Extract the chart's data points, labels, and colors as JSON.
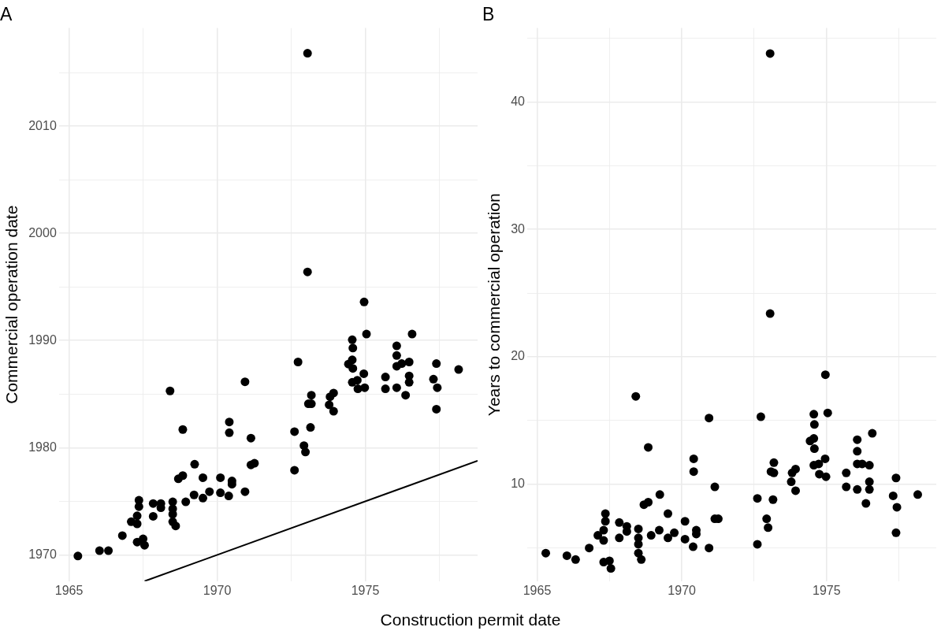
{
  "chart_data": [
    {
      "type": "scatter",
      "title": "A",
      "xlabel": "Construction permit date",
      "ylabel": "Commercial operation date",
      "xlim": [
        1964.66,
        1978.79
      ],
      "xticks": [
        1965,
        {
          "value": 1967.5,
          "label": null
        },
        1970,
        {
          "value": 1972.5,
          "label": null
        },
        1975,
        {
          "value": 1977.5,
          "label": null
        }
      ],
      "ylim": [
        1967.55,
        2019.15
      ],
      "yticks": [
        1970,
        {
          "value": 1975,
          "label": null
        },
        1980,
        {
          "value": 1985,
          "label": null
        },
        1990,
        {
          "value": 1995,
          "label": null
        },
        2000,
        {
          "value": 2005,
          "label": null
        },
        2010,
        {
          "value": 2015,
          "label": null
        }
      ],
      "grid": true,
      "marker": "circle",
      "series": [
        {
          "color": "#000000",
          "x": [
            1965.3,
            1966.03,
            1966.33,
            1966.8,
            1967.3,
            1967.5,
            1967.55,
            1967.1,
            1967.3,
            1967.3,
            1967.36,
            1967.36,
            1967.84,
            1967.84,
            1968.1,
            1968.1,
            1968.5,
            1968.5,
            1968.5,
            1968.5,
            1968.6,
            1968.94,
            1969.22,
            1969.52,
            1969.24,
            1969.52,
            1969.74,
            1970.11,
            1970.11,
            1970.39,
            1970.5,
            1970.5,
            1970.94,
            1970.41,
            1970.41,
            1970.94,
            1971.14,
            1971.14,
            1971.26,
            1968.41,
            1968.84,
            1968.69,
            1968.84,
            1973.05,
            1973.05,
            1972.61,
            1972.61,
            1972.73,
            1972.93,
            1972.98,
            1973.15,
            1974.96,
            1973.18,
            1973.18,
            1973.08,
            1973.81,
            1973.93,
            1973.78,
            1973.93,
            1974.56,
            1974.58,
            1974.56,
            1974.43,
            1974.58,
            1974.56,
            1974.73,
            1974.75,
            1974.95,
            1974.98,
            1975.04,
            1975.68,
            1975.68,
            1976.06,
            1976.06,
            1976.06,
            1976.23,
            1976.48,
            1976.06,
            1976.48,
            1976.48,
            1976.36,
            1976.58,
            1977.4,
            1977.3,
            1977.43,
            1977.4,
            1978.15
          ],
          "values": [
            1969.9,
            1970.4,
            1970.4,
            1971.8,
            1971.2,
            1971.5,
            1970.9,
            1973.1,
            1972.9,
            1973.65,
            1974.5,
            1975.1,
            1973.6,
            1974.8,
            1974.8,
            1974.4,
            1974.95,
            1974.3,
            1973.8,
            1973.1,
            1972.7,
            1974.95,
            1975.6,
            1975.3,
            1978.46,
            1977.2,
            1975.9,
            1977.2,
            1975.8,
            1975.5,
            1976.9,
            1976.6,
            1975.9,
            1982.4,
            1981.4,
            1986.15,
            1980.9,
            1978.4,
            1978.55,
            1985.3,
            1981.7,
            1977.1,
            1977.4,
            2016.8,
            1996.4,
            1977.9,
            1981.5,
            1988,
            1980.2,
            1979.6,
            1981.9,
            1993.6,
            1984.9,
            1984.1,
            1984.1,
            1984.75,
            1985.1,
            1984,
            1983.4,
            1990.07,
            1989.3,
            1988.2,
            1987.8,
            1987.4,
            1986.1,
            1986.3,
            1985.5,
            1986.9,
            1985.6,
            1990.6,
            1986.6,
            1985.5,
            1989.5,
            1988.6,
            1987.6,
            1987.85,
            1988,
            1985.6,
            1986.7,
            1986.1,
            1984.9,
            1990.6,
            1987.85,
            1986.4,
            1985.6,
            1983.6,
            1987.3
          ]
        },
        {
          "type": "line",
          "color": "#000000",
          "marker": "none",
          "x": [
            1967.55,
            1978.79
          ],
          "values": [
            1967.55,
            1978.79
          ]
        }
      ]
    },
    {
      "type": "scatter",
      "title": "B",
      "ylabel": "Years to commercial operation",
      "xlim": [
        1964.66,
        1978.79
      ],
      "xticks": [
        1965,
        {
          "value": 1967.5,
          "label": null
        },
        1970,
        {
          "value": 1972.5,
          "label": null
        },
        1975,
        {
          "value": 1977.5,
          "label": null
        }
      ],
      "ylim": [
        2.4,
        45.8
      ],
      "yticks": [
        {
          "value": 5,
          "label": null
        },
        10,
        {
          "value": 15,
          "label": null
        },
        20,
        {
          "value": 25,
          "label": null
        },
        30,
        {
          "value": 35,
          "label": null
        },
        40,
        {
          "value": 45,
          "label": null
        }
      ],
      "grid": true,
      "marker": "circle",
      "series": [
        {
          "color": "#000000",
          "x": [
            1965.3,
            1966.03,
            1966.33,
            1966.8,
            1967.3,
            1967.5,
            1967.55,
            1967.1,
            1967.3,
            1967.3,
            1967.36,
            1967.36,
            1967.84,
            1967.84,
            1968.1,
            1968.1,
            1968.5,
            1968.5,
            1968.5,
            1968.5,
            1968.6,
            1968.94,
            1969.22,
            1969.52,
            1969.24,
            1969.52,
            1969.74,
            1970.11,
            1970.11,
            1970.39,
            1970.5,
            1970.5,
            1970.94,
            1970.41,
            1970.41,
            1970.94,
            1971.14,
            1971.14,
            1971.26,
            1968.41,
            1968.84,
            1968.69,
            1968.84,
            1973.05,
            1973.05,
            1972.61,
            1972.61,
            1972.73,
            1972.93,
            1972.98,
            1973.15,
            1974.96,
            1973.18,
            1973.18,
            1973.08,
            1973.81,
            1973.93,
            1973.78,
            1973.93,
            1974.56,
            1974.58,
            1974.56,
            1974.43,
            1974.58,
            1974.56,
            1974.73,
            1974.75,
            1974.95,
            1974.98,
            1975.04,
            1975.68,
            1975.68,
            1976.06,
            1976.06,
            1976.06,
            1976.23,
            1976.48,
            1976.06,
            1976.48,
            1976.48,
            1976.36,
            1976.58,
            1977.4,
            1977.3,
            1977.43,
            1977.4,
            1978.15
          ],
          "values": [
            4.6,
            4.4,
            4.1,
            5,
            3.9,
            4,
            3.4,
            6,
            5.6,
            6.4,
            7.1,
            7.7,
            5.8,
            7,
            6.7,
            6.3,
            6.5,
            5.8,
            5.3,
            4.6,
            4.1,
            6,
            6.4,
            5.8,
            9.2,
            7.7,
            6.2,
            7.1,
            5.7,
            5.1,
            6.4,
            6.1,
            5,
            12,
            11,
            15.2,
            9.8,
            7.3,
            7.3,
            16.9,
            12.9,
            8.4,
            8.6,
            43.8,
            23.4,
            5.3,
            8.9,
            15.3,
            7.3,
            6.6,
            8.8,
            18.6,
            11.7,
            10.9,
            11,
            10.9,
            11.2,
            10.2,
            9.5,
            15.5,
            14.7,
            13.6,
            13.4,
            12.8,
            11.5,
            11.6,
            10.8,
            12,
            10.6,
            15.6,
            10.9,
            9.8,
            13.5,
            12.6,
            11.6,
            11.6,
            11.5,
            9.6,
            10.2,
            9.6,
            8.5,
            14,
            10.5,
            9.1,
            8.2,
            6.2,
            9.2
          ]
        }
      ]
    }
  ]
}
